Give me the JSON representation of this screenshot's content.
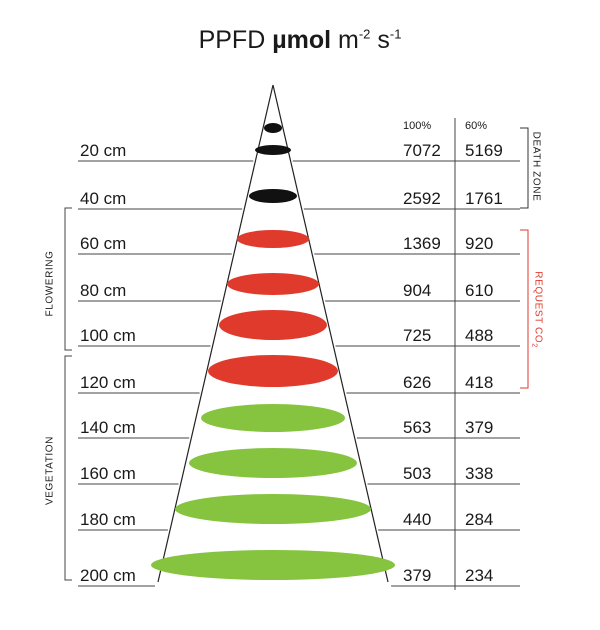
{
  "title": {
    "prefix": "PPFD ",
    "unit_bold": "µmol",
    "unit_m": " m",
    "exp1": "-2",
    "unit_s": " s",
    "exp2": "-1"
  },
  "columns": {
    "full": "100%",
    "dimmed": "60%"
  },
  "rows": [
    {
      "distance": "20 cm",
      "full": "7072",
      "dimmed": "5169",
      "zone": "death"
    },
    {
      "distance": "40 cm",
      "full": "2592",
      "dimmed": "1761",
      "zone": "death"
    },
    {
      "distance": "60 cm",
      "full": "1369",
      "dimmed": "920",
      "zone": "co2"
    },
    {
      "distance": "80 cm",
      "full": "904",
      "dimmed": "610",
      "zone": "co2"
    },
    {
      "distance": "100 cm",
      "full": "725",
      "dimmed": "488",
      "zone": "co2"
    },
    {
      "distance": "120 cm",
      "full": "626",
      "dimmed": "418",
      "zone": "co2"
    },
    {
      "distance": "140 cm",
      "full": "563",
      "dimmed": "379",
      "zone": "vegetation"
    },
    {
      "distance": "160 cm",
      "full": "503",
      "dimmed": "338",
      "zone": "vegetation"
    },
    {
      "distance": "180 cm",
      "full": "440",
      "dimmed": "284",
      "zone": "vegetation"
    },
    {
      "distance": "200 cm",
      "full": "379",
      "dimmed": "234",
      "zone": "vegetation"
    }
  ],
  "zones": {
    "death_zone": "DEATH ZONE",
    "request_co2": "REQUEST CO",
    "request_co2_sub": "2",
    "flowering": "FLOWERING",
    "vegetation": "VEGETATION"
  },
  "colors": {
    "death": "#111111",
    "co2": "#e03a2c",
    "vegetation": "#86c440",
    "text": "#1a1a1a",
    "lines": "#444444",
    "co2_bracket": "#e03a2c"
  }
}
